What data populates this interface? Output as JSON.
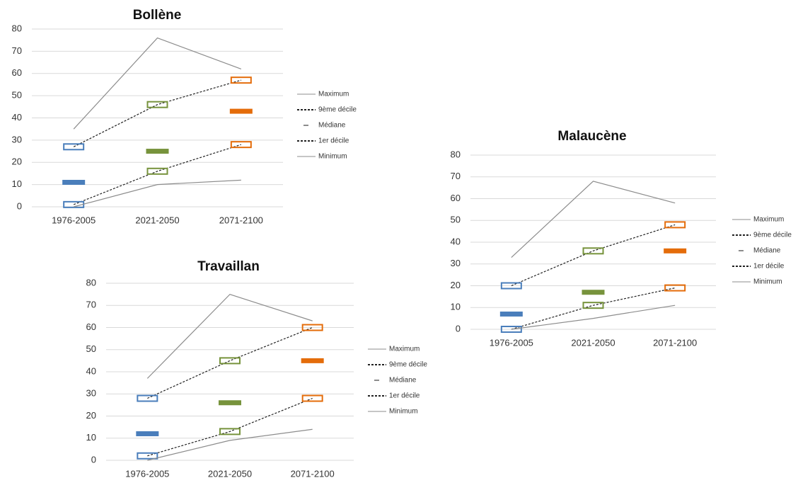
{
  "chart_data": [
    {
      "type": "line",
      "title": "Bollène",
      "categories": [
        "1976-2005",
        "2021-2050",
        "2071-2100"
      ],
      "category_colors": [
        "#4a7ebb",
        "#77933c",
        "#e46c0a"
      ],
      "series": [
        {
          "name": "Maximum",
          "color": "#8c8c8c",
          "line_style": "solid",
          "marker": "none",
          "values": [
            35,
            76,
            62
          ]
        },
        {
          "name": "9ème décile",
          "color": "#222222",
          "line_style": "dashed",
          "marker": "box",
          "values": [
            27,
            46,
            57
          ]
        },
        {
          "name": "Médiane",
          "color": "#8c8c8c",
          "line_style": "none",
          "marker": "bar",
          "values": [
            11,
            25,
            43
          ]
        },
        {
          "name": "1er décile",
          "color": "#222222",
          "line_style": "dashed",
          "marker": "box",
          "values": [
            1,
            16,
            28
          ]
        },
        {
          "name": "Minimum",
          "color": "#8c8c8c",
          "line_style": "solid",
          "marker": "none",
          "values": [
            0,
            10,
            12
          ]
        }
      ],
      "ylim": [
        0,
        80
      ],
      "yticks": [
        0,
        10,
        20,
        30,
        40,
        50,
        60,
        70,
        80
      ],
      "grid": true,
      "legend": "right"
    },
    {
      "type": "line",
      "title": "Travaillan",
      "categories": [
        "1976-2005",
        "2021-2050",
        "2071-2100"
      ],
      "category_colors": [
        "#4a7ebb",
        "#77933c",
        "#e46c0a"
      ],
      "series": [
        {
          "name": "Maximum",
          "color": "#8c8c8c",
          "line_style": "solid",
          "marker": "none",
          "values": [
            37,
            75,
            63
          ]
        },
        {
          "name": "9ème décile",
          "color": "#222222",
          "line_style": "dashed",
          "marker": "box",
          "values": [
            28,
            45,
            60
          ]
        },
        {
          "name": "Médiane",
          "color": "#8c8c8c",
          "line_style": "none",
          "marker": "bar",
          "values": [
            12,
            26,
            45
          ]
        },
        {
          "name": "1er décile",
          "color": "#222222",
          "line_style": "dashed",
          "marker": "box",
          "values": [
            2,
            13,
            28
          ]
        },
        {
          "name": "Minimum",
          "color": "#8c8c8c",
          "line_style": "solid",
          "marker": "none",
          "values": [
            0,
            9,
            14
          ]
        }
      ],
      "ylim": [
        0,
        80
      ],
      "yticks": [
        0,
        10,
        20,
        30,
        40,
        50,
        60,
        70,
        80
      ],
      "grid": true,
      "legend": "right"
    },
    {
      "type": "line",
      "title": "Malaucène",
      "categories": [
        "1976-2005",
        "2021-2050",
        "2071-2100"
      ],
      "category_colors": [
        "#4a7ebb",
        "#77933c",
        "#e46c0a"
      ],
      "series": [
        {
          "name": "Maximum",
          "color": "#8c8c8c",
          "line_style": "solid",
          "marker": "none",
          "values": [
            33,
            68,
            58
          ]
        },
        {
          "name": "9ème décile",
          "color": "#222222",
          "line_style": "dashed",
          "marker": "box",
          "values": [
            20,
            36,
            48
          ]
        },
        {
          "name": "Médiane",
          "color": "#8c8c8c",
          "line_style": "none",
          "marker": "bar",
          "values": [
            7,
            17,
            36
          ]
        },
        {
          "name": "1er décile",
          "color": "#222222",
          "line_style": "dashed",
          "marker": "box",
          "values": [
            0,
            11,
            19
          ]
        },
        {
          "name": "Minimum",
          "color": "#8c8c8c",
          "line_style": "solid",
          "marker": "none",
          "values": [
            0,
            5,
            11
          ]
        }
      ],
      "ylim": [
        0,
        80
      ],
      "yticks": [
        0,
        10,
        20,
        30,
        40,
        50,
        60,
        70,
        80
      ],
      "grid": true,
      "legend": "right"
    }
  ]
}
